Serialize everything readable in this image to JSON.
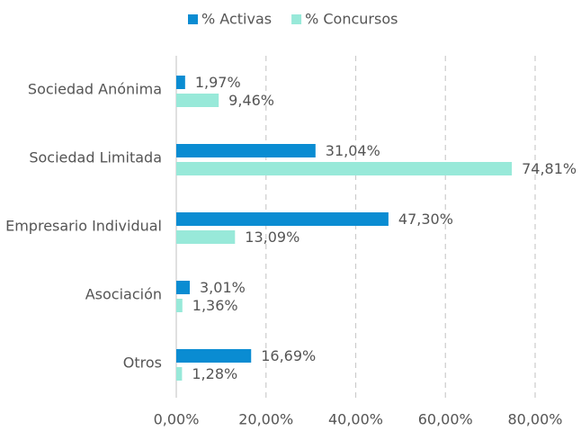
{
  "chart_data": {
    "type": "hbar",
    "categories": [
      "Sociedad Anónima",
      "Sociedad Limitada",
      "Empresario Individual",
      "Asociación",
      "Otros"
    ],
    "series": [
      {
        "name": "% Activas",
        "color": "#0a8cd2",
        "values": [
          1.97,
          31.04,
          47.3,
          3.01,
          16.69
        ],
        "value_labels": [
          "1,97%",
          "31,04%",
          "47,30%",
          "3,01%",
          "16,69%"
        ]
      },
      {
        "name": "% Concursos",
        "color": "#98e9d9",
        "values": [
          9.46,
          74.81,
          13.09,
          1.36,
          1.28
        ],
        "value_labels": [
          "9,46%",
          "74,81%",
          "13,09%",
          "1,36%",
          "1,28%"
        ]
      }
    ],
    "xlim": [
      0,
      80
    ],
    "xticks": [
      {
        "value": 0,
        "label": "0,00%"
      },
      {
        "value": 20,
        "label": "20,00%"
      },
      {
        "value": 40,
        "label": "40,00%"
      },
      {
        "value": 60,
        "label": "60,00%"
      },
      {
        "value": 80,
        "label": "80,00%"
      }
    ],
    "grid": true,
    "legend": "top"
  }
}
